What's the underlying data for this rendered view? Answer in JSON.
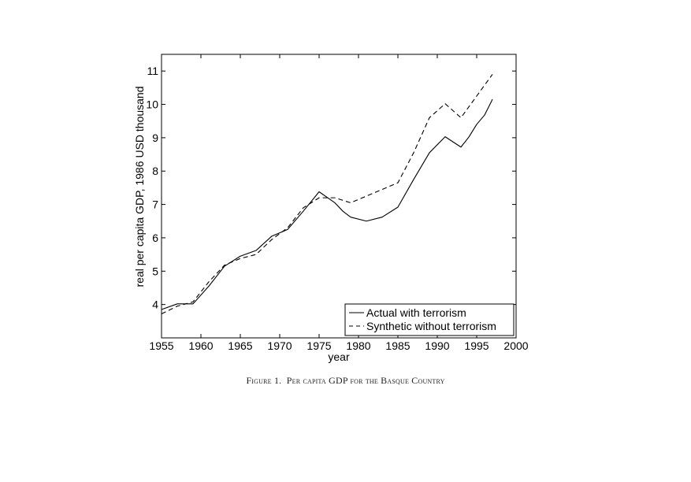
{
  "chart_data": {
    "type": "line",
    "xlabel": "year",
    "ylabel": "real per capita GDP, 1986 USD thousand",
    "xlim": [
      1955,
      2000
    ],
    "ylim": [
      3,
      11.5
    ],
    "xticks": [
      1955,
      1960,
      1965,
      1970,
      1975,
      1980,
      1985,
      1990,
      1995,
      2000
    ],
    "yticks": [
      4,
      5,
      6,
      7,
      8,
      9,
      10,
      11
    ],
    "grid": false,
    "legend": {
      "position": "bottom-right"
    },
    "series": [
      {
        "name": "Actual with terrorism",
        "style": "solid",
        "x": [
          1955,
          1957,
          1959,
          1961,
          1963,
          1965,
          1967,
          1969,
          1971,
          1973,
          1975,
          1977,
          1978,
          1979,
          1981,
          1983,
          1985,
          1987,
          1989,
          1991,
          1993,
          1994,
          1995,
          1996,
          1997
        ],
        "y": [
          3.85,
          4.02,
          4.02,
          4.55,
          5.15,
          5.45,
          5.62,
          6.05,
          6.25,
          6.8,
          7.38,
          7.05,
          6.8,
          6.62,
          6.5,
          6.62,
          6.92,
          7.75,
          8.55,
          9.03,
          8.72,
          9.02,
          9.4,
          9.68,
          10.15
        ]
      },
      {
        "name": "Synthetic without terrorism",
        "style": "dashed",
        "x": [
          1955,
          1957,
          1959,
          1961,
          1963,
          1965,
          1967,
          1969,
          1971,
          1973,
          1975,
          1977,
          1979,
          1981,
          1983,
          1985,
          1987,
          1989,
          1991,
          1993,
          1995,
          1997
        ],
        "y": [
          3.72,
          3.95,
          4.08,
          4.68,
          5.18,
          5.38,
          5.5,
          5.95,
          6.3,
          6.9,
          7.2,
          7.2,
          7.05,
          7.25,
          7.45,
          7.65,
          8.55,
          9.6,
          10.02,
          9.6,
          10.25,
          10.9
        ]
      }
    ]
  },
  "caption": {
    "label": "Figure 1.",
    "text": "Per capita GDP for the Basque Country"
  }
}
